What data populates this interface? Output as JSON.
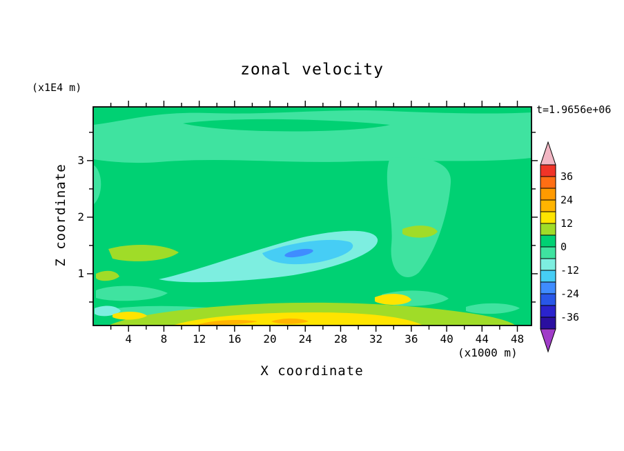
{
  "title": "zonal velocity",
  "annotations": {
    "y_axis_units": "(x1E4 m)",
    "x_axis_units": "(x1000 m)",
    "time_label": "t=1.9656e+06"
  },
  "axes": {
    "x": {
      "label": "X coordinate",
      "tick_values": [
        4,
        8,
        12,
        16,
        20,
        24,
        28,
        32,
        36,
        40,
        44,
        48
      ],
      "tick_labels": [
        "4",
        "8",
        "12",
        "16",
        "20",
        "24",
        "28",
        "32",
        "36",
        "40",
        "44",
        "48"
      ],
      "minor_step": 2,
      "domain": [
        0,
        49.6
      ]
    },
    "z": {
      "label": "Z coordinate",
      "tick_values": [
        1,
        2,
        3
      ],
      "tick_labels": [
        "1",
        "2",
        "3"
      ],
      "minor_step": 0.5,
      "domain": [
        0.085,
        3.95
      ]
    }
  },
  "colorbar": {
    "labels": [
      "36",
      "24",
      "12",
      "0",
      "-12",
      "-24",
      "-36"
    ],
    "levels": [
      -42,
      -36,
      -30,
      -24,
      -18,
      -12,
      -6,
      0,
      6,
      12,
      18,
      24,
      30,
      36,
      42
    ],
    "colors": [
      "#f03428",
      "#ff6e14",
      "#ff9a00",
      "#ffb400",
      "#ffe400",
      "#a0dc28",
      "#00d173",
      "#3fe3a0",
      "#7deee0",
      "#46cdf5",
      "#3f8cff",
      "#2857e8",
      "#2a23cd",
      "#2a0fa0"
    ],
    "above_color": "#f2b6c3",
    "below_color": "#a03cc8",
    "frame_color": "#000000"
  },
  "chart_data": {
    "type": "heatmap",
    "subtype": "filled-contour",
    "title": "zonal velocity",
    "xlabel": "X coordinate",
    "x_units": "(x1000 m)",
    "ylabel": "Z coordinate",
    "y_units": "(x1E4 m)",
    "time_annotation": "t=1.9656e+06",
    "x_range": [
      0,
      49.6
    ],
    "x_ticks": [
      4,
      8,
      12,
      16,
      20,
      24,
      28,
      32,
      36,
      40,
      44,
      48
    ],
    "z_range": [
      0,
      3.95
    ],
    "z_ticks": [
      1,
      2,
      3
    ],
    "contour_interval": 6,
    "colorbar_tick_levels": [
      36,
      24,
      12,
      0,
      -12,
      -24,
      -36
    ],
    "value_extent_shown": [
      -42,
      42
    ],
    "legend_position": "right",
    "grid": false,
    "features": [
      {
        "region": "most of the domain interior",
        "value_range": [
          0,
          6
        ],
        "color_name": "green"
      },
      {
        "region": "upper band z ~ 3.1 to 3.9 spanning all x, with embedded 0-6 lens near x 10-33",
        "value_range": [
          -6,
          0
        ],
        "color_name": "mint green"
      },
      {
        "region": "column on right side x ~ 33-41 descending from z ~ 3 to z ~ 1.1",
        "value_range": [
          -6,
          0
        ],
        "color_name": "mint green"
      },
      {
        "region": "mid-level tongue x ~ 8-33, z ~ 0.9-1.7 sloping upward to the right",
        "value_range": [
          -12,
          -6
        ],
        "color_name": "pale cyan"
      },
      {
        "region": "inner core x ~ 19-29, z ~ 1.2-1.6",
        "value_range": [
          -18,
          -12
        ],
        "color_name": "cyan"
      },
      {
        "region": "small closed core x ~ 22-25, z ~ 1.35",
        "value_range": [
          -24,
          -18
        ],
        "color_name": "blue"
      },
      {
        "region": "near-surface layer z < 0.5 from x ~ 2 to x ~ 42, plus patches near (x 3-10, z 1.2) and (x 35-38, z 1.5)",
        "value_range": [
          6,
          12
        ],
        "color_name": "yellow-green"
      },
      {
        "region": "shallow layer z < 0.25 from x ~ 9 to x ~ 37, plus patch near (x 32-36, z 0.45)",
        "value_range": [
          12,
          18
        ],
        "color_name": "yellow"
      },
      {
        "region": "thin surface maxima near x ~ 12-18 and x ~ 20-25 at z ~ 0.05",
        "value_range": [
          18,
          24
        ],
        "color_name": "orange"
      }
    ]
  }
}
